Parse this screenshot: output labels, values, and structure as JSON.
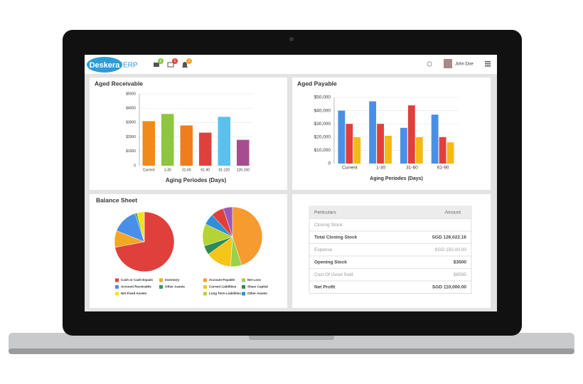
{
  "header": {
    "logo": "Deskera",
    "logo_suffix": "ERP",
    "badges": [
      "6",
      "5",
      "7"
    ],
    "user": "John Doe"
  },
  "chart_data": [
    {
      "type": "bar",
      "title": "Aged Receivable",
      "x_label": "Aging Periodes (Days)",
      "categories": [
        "Current",
        "1-30",
        "31-60",
        "61-90",
        "91-120",
        "120-150"
      ],
      "values": [
        3100,
        3600,
        2800,
        2300,
        3400,
        1800
      ],
      "colors": [
        "#f08a1c",
        "#8dc63f",
        "#f07d1d",
        "#e0403b",
        "#5bc0ee",
        "#a64d8f"
      ],
      "ylim": [
        0,
        5000
      ],
      "yticks": [
        0,
        {
          "value": 1000,
          "label": "$1000"
        },
        {
          "value": 2000,
          "label": "$2000"
        },
        {
          "value": 3000,
          "label": "$3000"
        },
        {
          "value": 4000,
          "label": "$4000"
        },
        {
          "value": 5000,
          "label": "$5000"
        }
      ],
      "grid": true
    },
    {
      "type": "bar",
      "title": "Aged Payable",
      "x_label": "Aging Periodes (Days)",
      "categories": [
        "Current",
        "1-30",
        "31-60",
        "61-90"
      ],
      "series": [
        {
          "color": "#4a8fe7",
          "values": [
            40000,
            47000,
            27000,
            37000
          ]
        },
        {
          "color": "#e0403b",
          "values": [
            30000,
            30000,
            44000,
            20000
          ]
        },
        {
          "color": "#f5b915",
          "values": [
            20000,
            21000,
            20000,
            16000
          ]
        }
      ],
      "ylim": [
        0,
        50000
      ],
      "yticks": [
        0,
        {
          "value": 10000,
          "label": "$10,000"
        },
        {
          "value": 20000,
          "label": "$20,000"
        },
        {
          "value": 30000,
          "label": "$30,000"
        },
        {
          "value": 40000,
          "label": "$40,000"
        },
        {
          "value": 50000,
          "label": "$50,000"
        }
      ],
      "grid": true
    },
    {
      "type": "pie",
      "title": "Balance Sheet",
      "categories": [
        "Cash or Cash Equals",
        "Inventory",
        "Account Receivable",
        "Other Assets",
        "Net Fixed Assets"
      ],
      "values": [
        72,
        9,
        14,
        1,
        4
      ],
      "colors": [
        "#e0403b",
        "#f5a623",
        "#4a8fe7",
        "#2e9e5b",
        "#f5e11b"
      ]
    },
    {
      "type": "pie",
      "categories": [
        "Account Payable",
        "Net Loss",
        "Current Liabilities",
        "Share Capital",
        "Long Term Liabilities",
        "Other Assets",
        null,
        null
      ],
      "values": [
        45,
        6,
        14,
        5,
        12,
        6,
        7,
        5
      ],
      "colors": [
        "#f59b2f",
        "#9ad14b",
        "#f5c518",
        "#2e8b57",
        "#b5d334",
        "#2f8fd8",
        "#e0403b",
        "#9b59b6"
      ]
    }
  ],
  "table": {
    "header": [
      "Perticulars",
      "Amount"
    ],
    "rows": [
      [
        "Closing Stock"
      ],
      [
        "Total Closing Stock",
        "SGD 126,022.16"
      ],
      [
        "Expense",
        "SGD 150,00.00"
      ],
      [
        "Opening Stock",
        "$3500"
      ],
      [
        "Cost Of Good Sold",
        "$8595"
      ],
      [
        "Net Profit",
        "SGD 110,000.00"
      ]
    ]
  }
}
